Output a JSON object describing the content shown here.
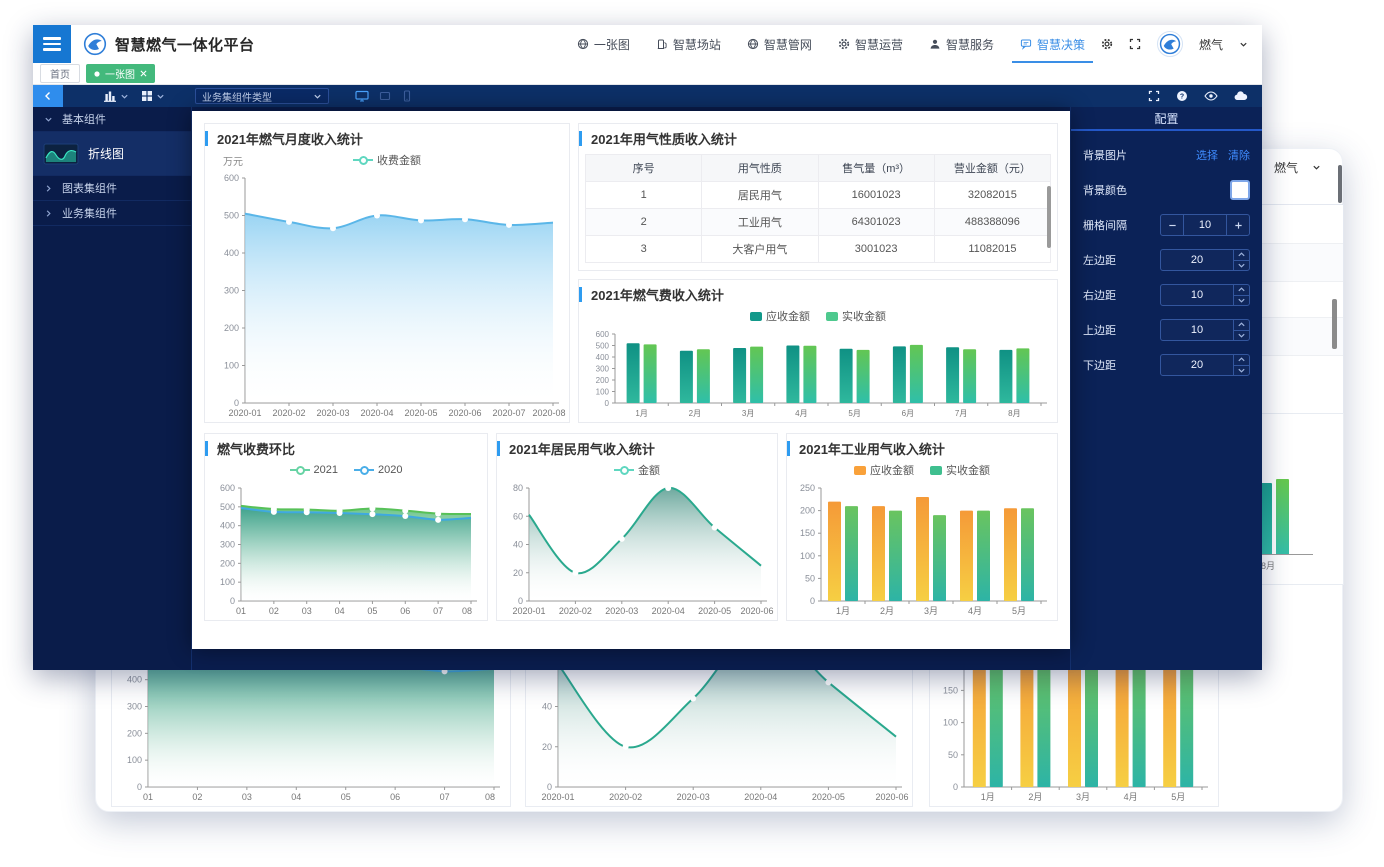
{
  "app": {
    "title": "智慧燃气一体化平台",
    "nav": [
      {
        "label": "一张图"
      },
      {
        "label": "智慧场站"
      },
      {
        "label": "智慧管网"
      },
      {
        "label": "智慧运营"
      },
      {
        "label": "智慧服务"
      },
      {
        "label": "智慧决策",
        "active": true
      }
    ],
    "user": "燃气",
    "tabs": {
      "home": "首页",
      "active": "一张图"
    },
    "accent_color": "#3a8ee6",
    "tab_active_color": "#43b97c"
  },
  "toolbar": {
    "component_select": "业务集组件类型"
  },
  "sidebar": {
    "groups": [
      {
        "label": "基本组件",
        "expanded": true
      },
      {
        "label": "图表集组件",
        "expanded": false
      },
      {
        "label": "业务集组件",
        "expanded": false
      }
    ],
    "selected_item": "折线图"
  },
  "config_panel": {
    "title": "配置",
    "bg_image_label": "背景图片",
    "choose": "选择",
    "clear": "清除",
    "bg_color_label": "背景颜色",
    "grid_gap_label": "栅格间隔",
    "grid_gap": "10",
    "margins": [
      {
        "label": "左边距",
        "value": "20"
      },
      {
        "label": "右边距",
        "value": "10"
      },
      {
        "label": "上边距",
        "value": "10"
      },
      {
        "label": "下边距",
        "value": "20"
      }
    ]
  },
  "background_window": {
    "user": "燃气",
    "table_fragment": ")",
    "month_label": "8月"
  },
  "chart_data": [
    {
      "type": "area",
      "title": "2021年燃气月度收入统计",
      "unit": "万元",
      "categories": [
        "2020-01",
        "2020-02",
        "2020-03",
        "2020-04",
        "2020-05",
        "2020-06",
        "2020-07",
        "2020-08"
      ],
      "ylim": [
        0,
        600
      ],
      "ystep": 100,
      "ml": 34,
      "tsize": 9,
      "series": [
        {
          "name": "收费金额",
          "line": "#5ab6e8",
          "fill": "#8ecff2",
          "legend": "#5fd7c0",
          "values": [
            505,
            483,
            466,
            500,
            487,
            490,
            475,
            481
          ]
        }
      ]
    },
    {
      "type": "table",
      "title": "2021年用气性质收入统计",
      "columns": [
        "序号",
        "用气性质",
        "售气量（m³）",
        "营业金额（元）"
      ],
      "rows": [
        [
          "1",
          "居民用气",
          "16001023",
          "32082015"
        ],
        [
          "2",
          "工业用气",
          "64301023",
          "488388096"
        ],
        [
          "3",
          "大客户用气",
          "3001023",
          "11082015"
        ]
      ]
    },
    {
      "type": "bar",
      "title": "2021年燃气费收入统计",
      "categories": [
        "1月",
        "2月",
        "3月",
        "4月",
        "5月",
        "6月",
        "7月",
        "8月"
      ],
      "ylim": [
        0,
        600
      ],
      "ystep": 100,
      "ml": 30,
      "tsize": 8,
      "series": [
        {
          "name": "应收金额",
          "top": "#0f9184",
          "bottom": "#2fb89d",
          "legend": "#12998a",
          "values": [
            520,
            455,
            478,
            500,
            472,
            492,
            485,
            462
          ]
        },
        {
          "name": "实收金额",
          "top": "#63c653",
          "bottom": "#2fbfa9",
          "legend": "#4ec98e",
          "values": [
            510,
            468,
            490,
            497,
            462,
            505,
            468,
            475
          ]
        }
      ]
    },
    {
      "type": "area",
      "title": "燃气收费环比",
      "categories": [
        "01",
        "02",
        "03",
        "04",
        "05",
        "06",
        "07",
        "08"
      ],
      "ylim": [
        0,
        600
      ],
      "ystep": 100,
      "ml": 30,
      "tsize": 9,
      "series": [
        {
          "name": "2021",
          "line": "#57c158",
          "fill": "#54ba78",
          "legend": "#67d3a4",
          "values": [
            505,
            488,
            486,
            479,
            491,
            480,
            464,
            462
          ]
        },
        {
          "name": "2020",
          "line": "#3fa9e0",
          "fill": "#3ea08f",
          "legend": "#4aaee8",
          "values": [
            494,
            473,
            471,
            467,
            461,
            451,
            431,
            441
          ]
        }
      ]
    },
    {
      "type": "area",
      "title": "2021年居民用气收入统计",
      "categories": [
        "2020-01",
        "2020-02",
        "2020-03",
        "2020-04",
        "2020-05",
        "2020-06"
      ],
      "ylim": [
        0,
        80
      ],
      "ystep": 20,
      "ml": 26,
      "tsize": 9,
      "series": [
        {
          "name": "金额",
          "line": "#2aa98e",
          "fill": "#5d9f93",
          "legend": "#5fd7c0",
          "values": [
            61,
            20,
            44,
            80,
            52,
            25
          ]
        }
      ]
    },
    {
      "type": "bar",
      "title": "2021年工业用气收入统计",
      "categories": [
        "1月",
        "2月",
        "3月",
        "4月",
        "5月"
      ],
      "ylim": [
        0,
        250
      ],
      "ystep": 50,
      "ml": 28,
      "tsize": 9,
      "series": [
        {
          "name": "应收金额",
          "top": "#f59a38",
          "bottom": "#f6cf43",
          "legend": "#f9a13a",
          "values": [
            220,
            210,
            230,
            200,
            205
          ]
        },
        {
          "name": "实收金额",
          "top": "#6ac45f",
          "bottom": "#2db4a6",
          "legend": "#3fbf8f",
          "values": [
            210,
            200,
            190,
            200,
            205
          ]
        }
      ]
    }
  ]
}
